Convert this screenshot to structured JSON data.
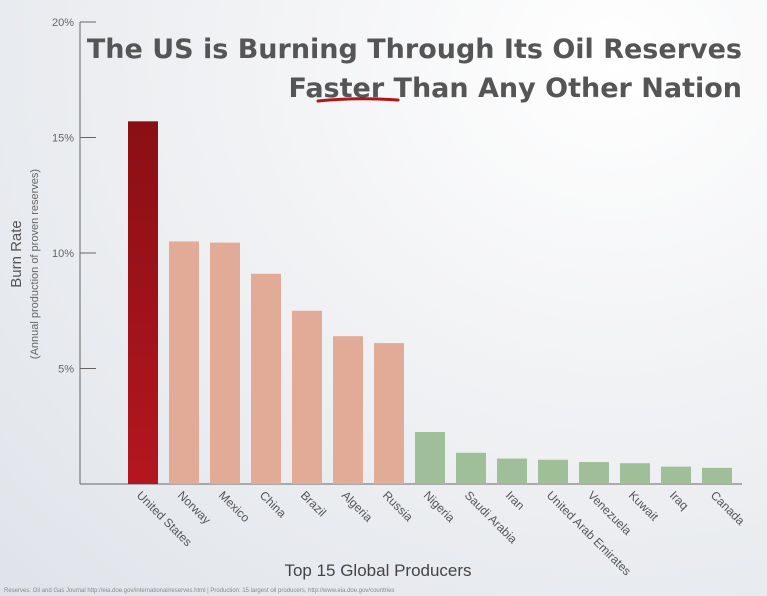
{
  "chart_data": {
    "type": "bar",
    "title_line1": "The US is Burning Through Its Oil Reserves",
    "title_line2_underlined": "Faster",
    "title_line2_rest": " Than Any Other Nation",
    "xlabel": "Top 15 Global Producers",
    "ylabel": "Burn Rate",
    "ylabel_sub": "(Annual production of proven reserves)",
    "ylim": [
      0,
      20
    ],
    "yticks": [
      {
        "value": 5,
        "label": "5%"
      },
      {
        "value": 10,
        "label": "10%"
      },
      {
        "value": 15,
        "label": "15%"
      },
      {
        "value": 20,
        "label": "20%"
      }
    ],
    "categories": [
      "United States",
      "Norway",
      "Mexico",
      "China",
      "Brazil",
      "Algeria",
      "Russia",
      "Nigeria",
      "Saudi Arabia",
      "Iran",
      "United Arab Emirates",
      "Venezuela",
      "Kuwait",
      "Iraq",
      "Canada"
    ],
    "values": [
      15.7,
      10.5,
      10.45,
      9.1,
      7.5,
      6.4,
      6.1,
      2.25,
      1.35,
      1.1,
      1.05,
      0.95,
      0.9,
      0.75,
      0.7
    ],
    "bar_colors": [
      "#a0141c",
      "#e2ab98",
      "#e2ab98",
      "#e2ab98",
      "#e2ab98",
      "#e2ab98",
      "#e2ab98",
      "#9fbf98",
      "#9fbf98",
      "#9fbf98",
      "#9fbf98",
      "#9fbf98",
      "#9fbf98",
      "#9fbf98",
      "#9fbf98"
    ],
    "accent_underline_color": "#b0141c",
    "grid": false,
    "source": "Reserves: Oil and Gas Journal http://eia.doe.gov/international/reserves.html | Production: 15 largest oil producers,  http://www.eia.doe.gov/countries"
  }
}
